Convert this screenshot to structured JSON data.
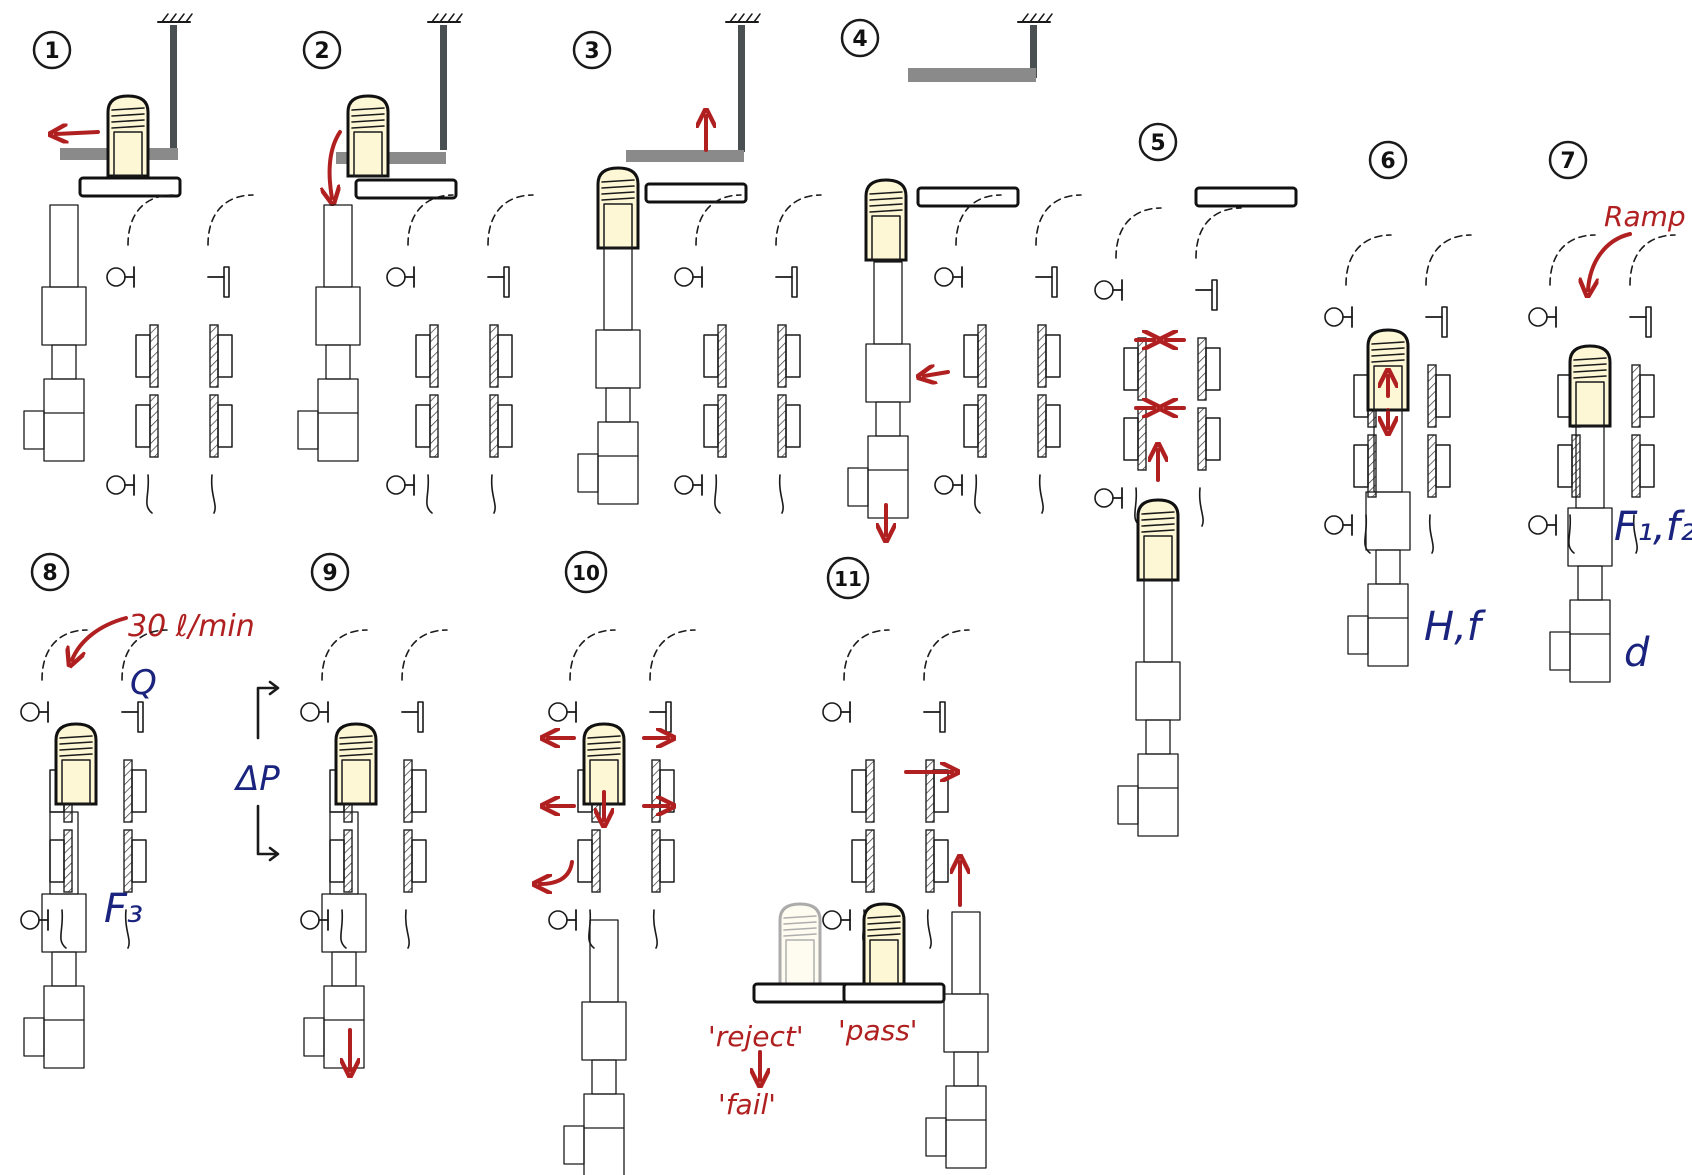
{
  "steps": [
    {
      "num": "1"
    },
    {
      "num": "2"
    },
    {
      "num": "3"
    },
    {
      "num": "4"
    },
    {
      "num": "5"
    },
    {
      "num": "6"
    },
    {
      "num": "7"
    },
    {
      "num": "8"
    },
    {
      "num": "9"
    },
    {
      "num": "10"
    },
    {
      "num": "11"
    }
  ],
  "annotations": {
    "ramp": "Ramp",
    "f1f2": "F₁,f₂",
    "d": "d",
    "hf": "H,f",
    "rate": "30 ℓ/min",
    "q": "Q",
    "dp": "ΔP",
    "f3": "F₃",
    "reject": "'reject'",
    "pass": "'pass'",
    "fail": "'fail'"
  },
  "colors": {
    "ink": "#1a1a1a",
    "arrow": "#b02020",
    "label": "#1a237e",
    "cap_fill": "#fdf7d6",
    "gripper": "#8a8a8a",
    "gripper_dark": "#4a4f52"
  }
}
